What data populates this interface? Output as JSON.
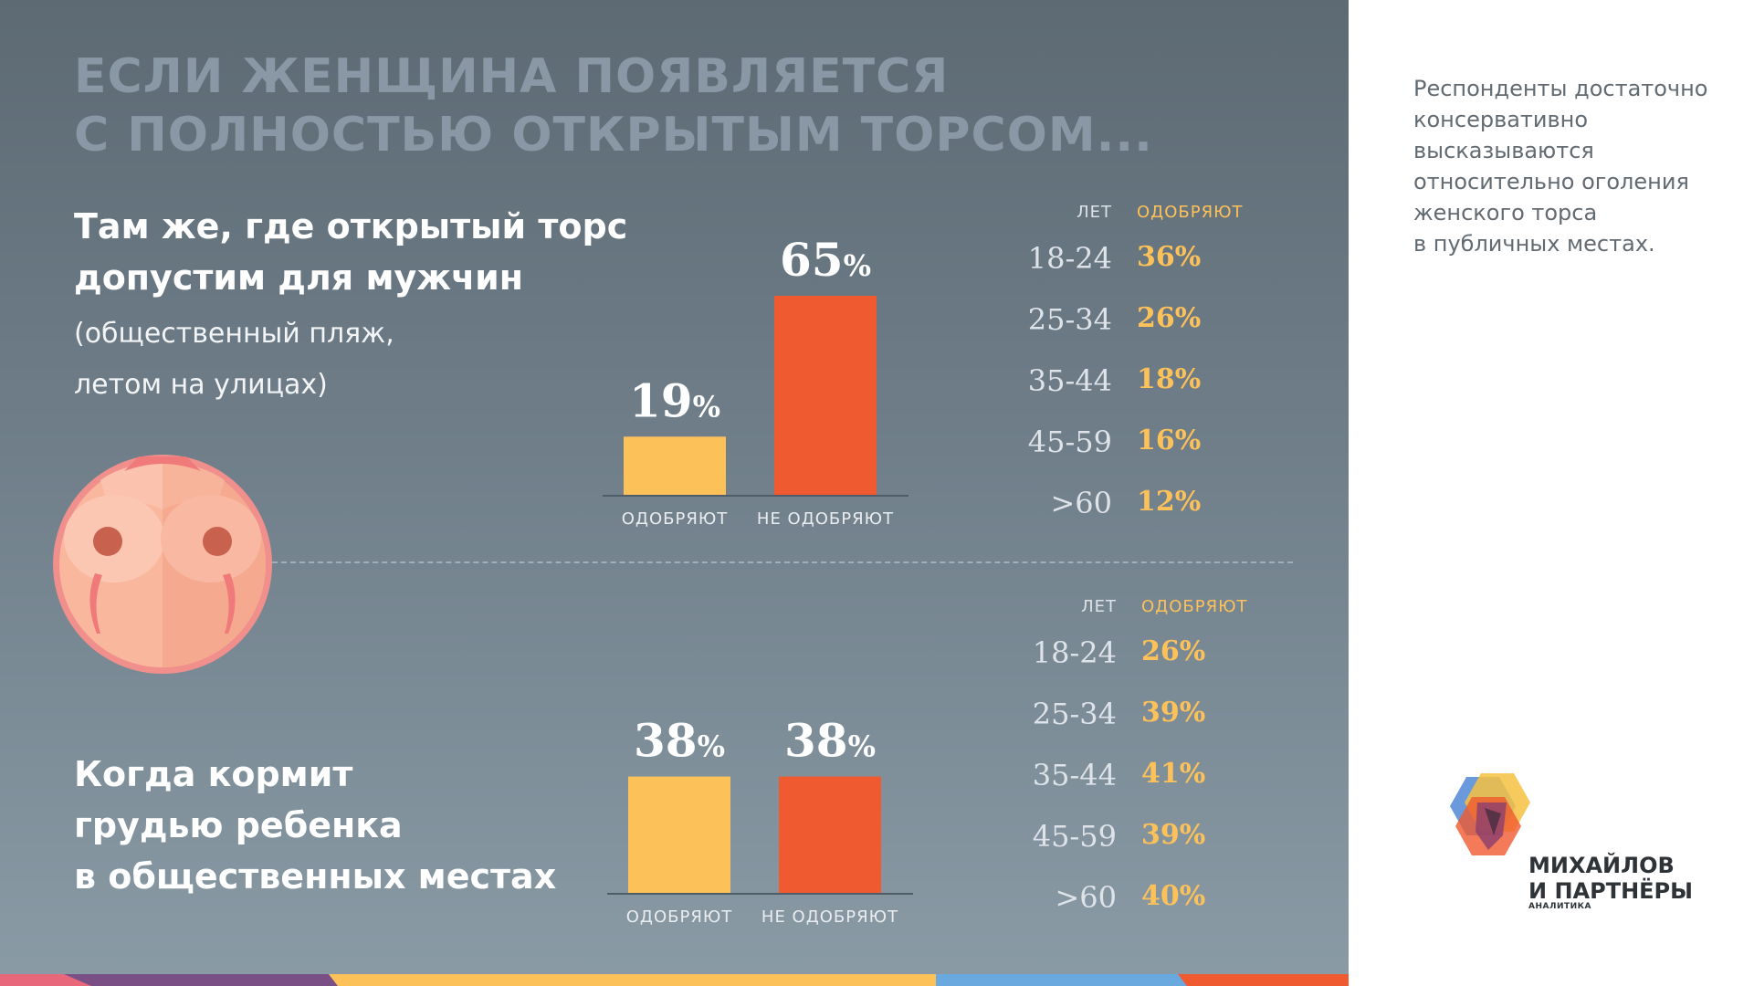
{
  "headline": {
    "line1": "ЕСЛИ ЖЕНЩИНА ПОЯВЛЯЕТСЯ",
    "line2": "С ПОЛНОСТЬЮ ОТКРЫТЫМ ТОРСОМ..."
  },
  "section1": {
    "title_line1": "Там же, где открытый торс",
    "title_line2": "допустим для мужчин",
    "subtitle_line1": "(общественный пляж,",
    "subtitle_line2": "летом на улицах)"
  },
  "section2": {
    "title_line1": "Когда кормит",
    "title_line2": "грудью ребенка",
    "title_line3": "в общественных местах"
  },
  "side_note": {
    "lines": [
      "Респонденты достаточно",
      "консервативно",
      "высказываются",
      "относительно оголения",
      "женского торса",
      "в публичных местах."
    ]
  },
  "logo": {
    "line1": "МИХАЙЛОВ",
    "line2": "И ПАРТНЁРЫ",
    "sub": "АНАЛИТИКА"
  },
  "colors": {
    "approve": "#fdc15a",
    "disapprove": "#f05a30",
    "header_age": "#dde3e8",
    "header_approve": "#fdc15a"
  },
  "chart_data": [
    {
      "type": "bar",
      "categories": [
        "ОДОБРЯЮТ",
        "НЕ ОДОБРЯЮТ"
      ],
      "values": [
        19,
        65
      ],
      "value_labels": [
        "19",
        "65"
      ],
      "unit": "%",
      "ylim": [
        0,
        70
      ]
    },
    {
      "type": "table",
      "columns": [
        "ЛЕТ",
        "ОДОБРЯЮТ"
      ],
      "rows": [
        [
          "18-24",
          "36%"
        ],
        [
          "25-34",
          "26%"
        ],
        [
          "35-44",
          "18%"
        ],
        [
          "45-59",
          "16%"
        ],
        [
          ">60",
          "12%"
        ]
      ]
    },
    {
      "type": "bar",
      "categories": [
        "ОДОБРЯЮТ",
        "НЕ ОДОБРЯЮТ"
      ],
      "values": [
        38,
        38
      ],
      "value_labels": [
        "38",
        "38"
      ],
      "unit": "%",
      "ylim": [
        0,
        70
      ]
    },
    {
      "type": "table",
      "columns": [
        "ЛЕТ",
        "ОДОБРЯЮТ"
      ],
      "rows": [
        [
          "18-24",
          "26%"
        ],
        [
          "25-34",
          "39%"
        ],
        [
          "35-44",
          "41%"
        ],
        [
          "45-59",
          "39%"
        ],
        [
          ">60",
          "40%"
        ]
      ]
    }
  ]
}
